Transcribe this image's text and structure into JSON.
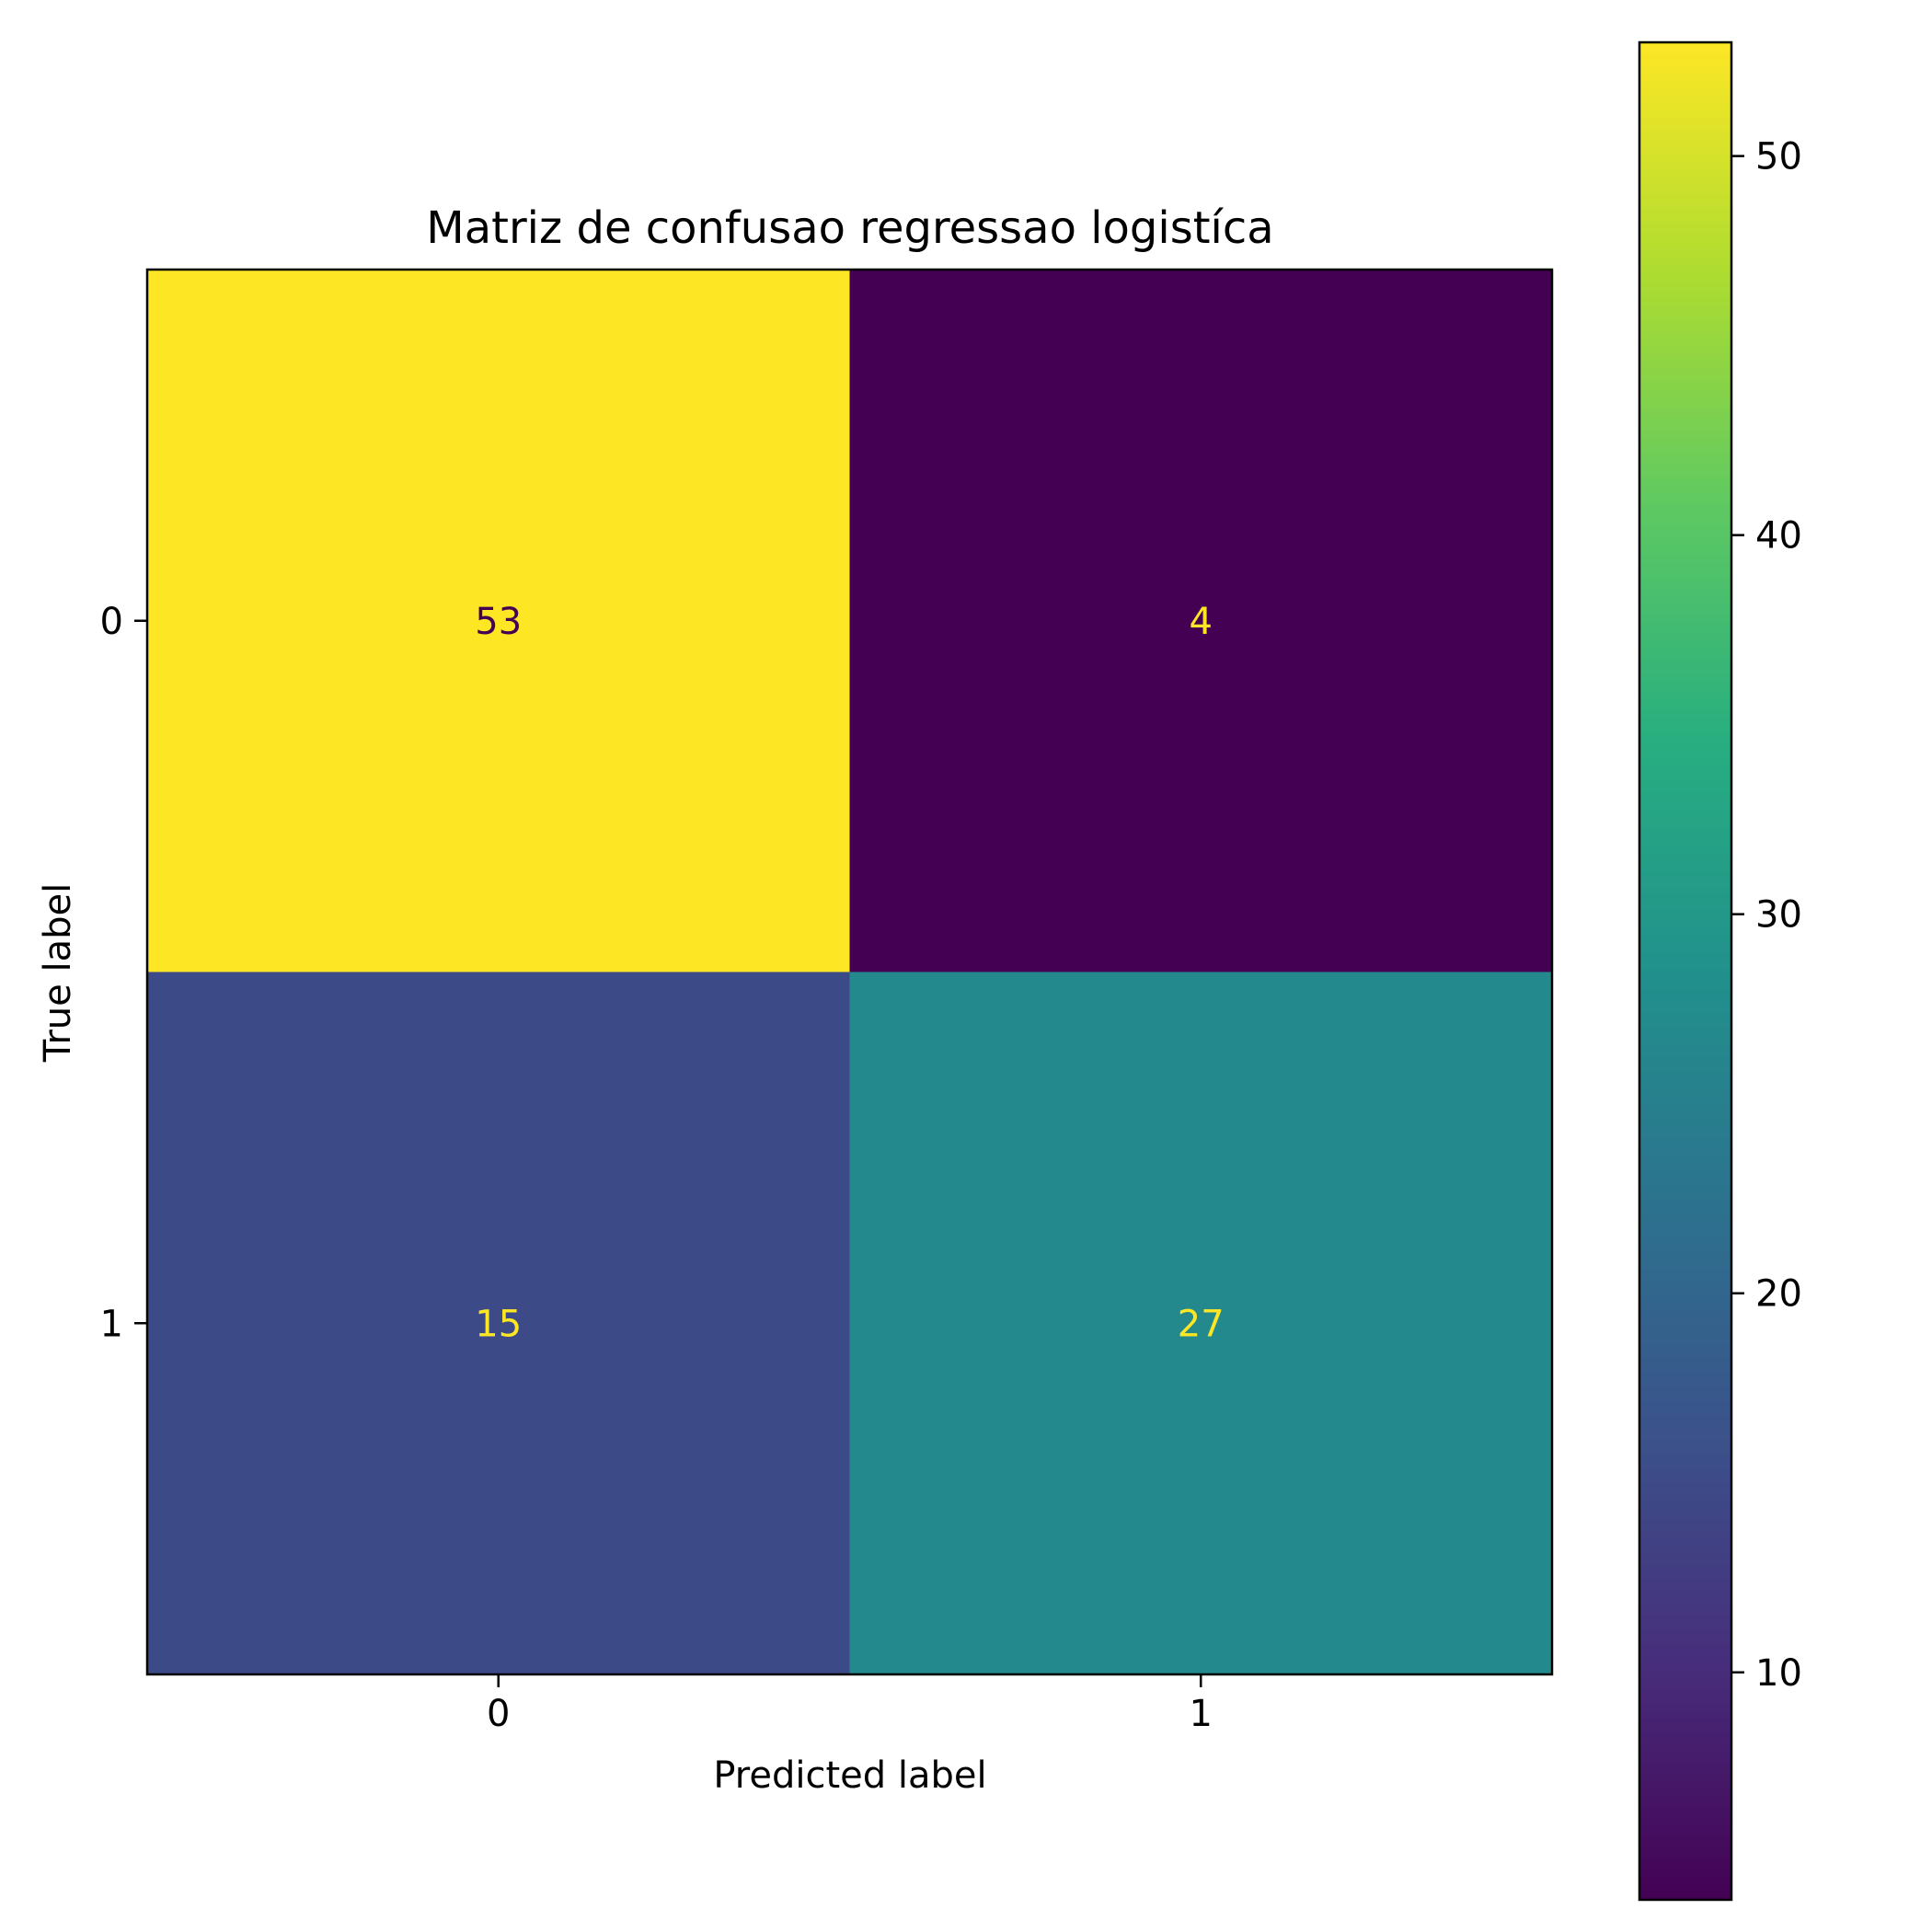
{
  "chart_data": {
    "type": "heatmap",
    "title": "Matriz de confusao regressao logistíca",
    "xlabel": "Predicted label",
    "ylabel": "True label",
    "x_categories": [
      "0",
      "1"
    ],
    "y_categories": [
      "0",
      "1"
    ],
    "values": [
      [
        53,
        4
      ],
      [
        15,
        27
      ]
    ],
    "colormap": "viridis",
    "color_range": [
      4,
      53
    ],
    "colorbar_ticks": [
      "10",
      "20",
      "30",
      "40",
      "50"
    ],
    "text_colors": {
      "on_light": "#440154",
      "on_dark": "#fde725"
    }
  }
}
